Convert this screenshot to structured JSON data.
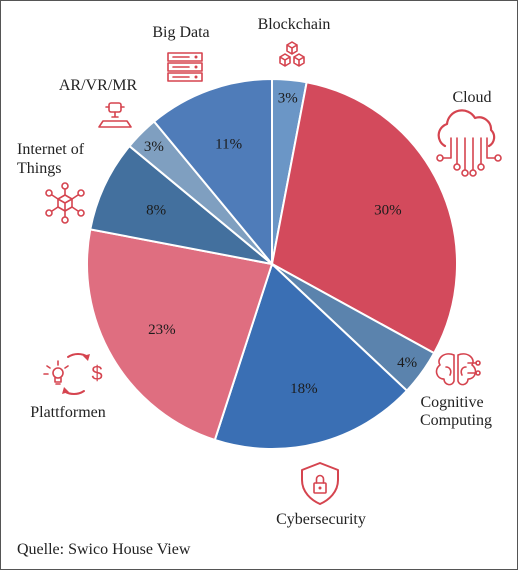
{
  "chart_data": {
    "type": "pie",
    "slices": [
      {
        "label": "Blockchain",
        "value": 3,
        "value_label": "3%",
        "color": "#6b96c6"
      },
      {
        "label": "Cloud",
        "value": 30,
        "value_label": "30%",
        "color": "#d34a5c"
      },
      {
        "label": "Cognitive Computing",
        "value": 4,
        "value_label": "4%",
        "color": "#5b83ad"
      },
      {
        "label": "Cybersecurity",
        "value": 18,
        "value_label": "18%",
        "color": "#3a6fb4"
      },
      {
        "label": "Plattformen",
        "value": 23,
        "value_label": "23%",
        "color": "#df6e80"
      },
      {
        "label": "Internet of Things",
        "value": 8,
        "value_label": "8%",
        "color": "#43709e"
      },
      {
        "label": "AR/VR/MR",
        "value": 3,
        "value_label": "3%",
        "color": "#7f9fc0"
      },
      {
        "label": "Big Data",
        "value": 11,
        "value_label": "11%",
        "color": "#4f7cb9"
      }
    ],
    "start_angle_deg": 0,
    "direction": "clockwise"
  },
  "labels": {
    "blockchain": "Blockchain",
    "cloud": "Cloud",
    "cognitive_line1": "Cognitive",
    "cognitive_line2": "Computing",
    "cybersecurity": "Cybersecurity",
    "plattformen": "Plattformen",
    "iot_line1": "Internet of",
    "iot_line2": "Things",
    "arvrmr": "AR/VR/MR",
    "bigdata": "Big Data"
  },
  "source": "Quelle: Swico House View",
  "icons": {
    "blockchain": "blockchain-icon",
    "cloud": "cloud-network-icon",
    "cognitive": "brain-icon",
    "cybersecurity": "shield-lock-icon",
    "plattformen": "lightbulb-dollar-cycle-icon",
    "iot": "network-nodes-icon",
    "arvrmr": "vr-headset-icon",
    "bigdata": "server-rack-icon"
  },
  "accent_color": "#d5444f"
}
